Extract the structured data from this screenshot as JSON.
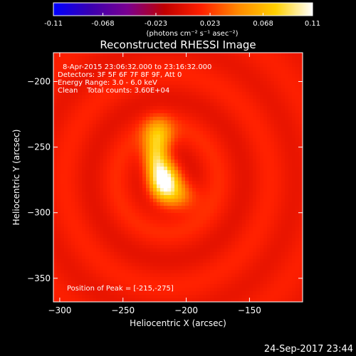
{
  "chart_data": {
    "type": "heatmap",
    "title": "Reconstructed RHESSI Image",
    "xlabel": "Heliocentric X (arcsec)",
    "ylabel": "Heliocentric Y (arcsec)",
    "xlim": [
      -305,
      -108
    ],
    "ylim": [
      -368,
      -178
    ],
    "xticks": [
      -300,
      -250,
      -200,
      -150
    ],
    "yticks": [
      -200,
      -250,
      -300,
      -350
    ],
    "colorbar": {
      "range": [
        -0.11,
        0.11
      ],
      "ticks": [
        -0.11,
        -0.068,
        -0.023,
        0.023,
        0.068,
        0.11
      ],
      "tick_labels": [
        "-0.11",
        "-0.068",
        "-0.023",
        "0.023",
        "0.068",
        "0.11"
      ],
      "unit_label": "(photons cm⁻² s⁻¹ asec⁻²)",
      "colormap": [
        "#0000ff",
        "#3a00b0",
        "#7a0090",
        "#c00000",
        "#ff2000",
        "#ff8a00",
        "#ffd000",
        "#ffffff"
      ]
    },
    "annotations": [
      "8-Apr-2015 23:06:32.000 to 23:16:32.000",
      "Detectors: 3F 5F 6F 7F 8F 9F, Att 0",
      "Energy Range: 3.0 - 6.0 keV",
      "Clean    Total counts: 3.60E+04"
    ],
    "peak_label": "Position of Peak = [-215,-275]",
    "peak": [
      -215,
      -275
    ],
    "peak_value": 0.11,
    "background_level": 0.01,
    "source_components": [
      {
        "x": -218,
        "y": -276,
        "amplitude": 0.09,
        "sigma_x": 8,
        "sigma_y": 10
      },
      {
        "x": -224,
        "y": -258,
        "amplitude": 0.07,
        "sigma_x": 7,
        "sigma_y": 10
      },
      {
        "x": -222,
        "y": -240,
        "amplitude": 0.05,
        "sigma_x": 8,
        "sigma_y": 9
      },
      {
        "x": -206,
        "y": -287,
        "amplitude": 0.045,
        "sigma_x": 10,
        "sigma_y": 8
      }
    ],
    "grid": false,
    "legend": "none"
  },
  "footer": {
    "timestamp": "24-Sep-2017 23:44"
  }
}
